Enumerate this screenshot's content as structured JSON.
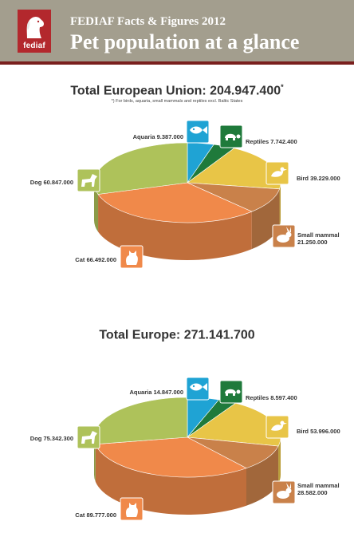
{
  "header": {
    "subtitle": "FEDIAF Facts & Figures 2012",
    "title": "Pet population at a glance",
    "logo_text": "fediaf"
  },
  "colors": {
    "header_bg": "#a39e8e",
    "header_line": "#7a1f1d",
    "logo_red": "#b3282d",
    "aquaria": "#1fa3d4",
    "reptiles": "#1f7a3b",
    "bird": "#e8c547",
    "small_mammal": "#c9814a",
    "cat": "#f0894a",
    "dog": "#aec25a"
  },
  "chart_data": [
    {
      "type": "pie",
      "title": "Total European Union: 204.947.400",
      "title_mark": "*",
      "note": "*) For birds, aquaria, small mammals and reptiles excl. Baltic States",
      "categories": [
        "Aquaria",
        "Reptiles",
        "Bird",
        "Small mammal",
        "Cat",
        "Dog"
      ],
      "values": [
        9387000,
        7742400,
        39229000,
        21250000,
        66492000,
        60847000
      ],
      "value_labels": [
        "9.387.000",
        "7.742.400",
        "39.229.000",
        "21.250.000",
        "66.492.000",
        "60.847.000"
      ],
      "icons": [
        "fish-icon",
        "turtle-icon",
        "bird-icon",
        "rabbit-icon",
        "cat-icon",
        "dog-icon"
      ]
    },
    {
      "type": "pie",
      "title": "Total Europe: 271.141.700",
      "title_mark": "",
      "note": "",
      "categories": [
        "Aquaria",
        "Reptiles",
        "Bird",
        "Small mammal",
        "Cat",
        "Dog"
      ],
      "values": [
        14847000,
        8597400,
        53996000,
        28582000,
        89777000,
        75342300
      ],
      "value_labels": [
        "14.847.000",
        "8.597.400",
        "53.996.000",
        "28.582.000",
        "89.777.000",
        "75.342.300"
      ],
      "icons": [
        "fish-icon",
        "turtle-icon",
        "bird-icon",
        "rabbit-icon",
        "cat-icon",
        "dog-icon"
      ]
    }
  ]
}
